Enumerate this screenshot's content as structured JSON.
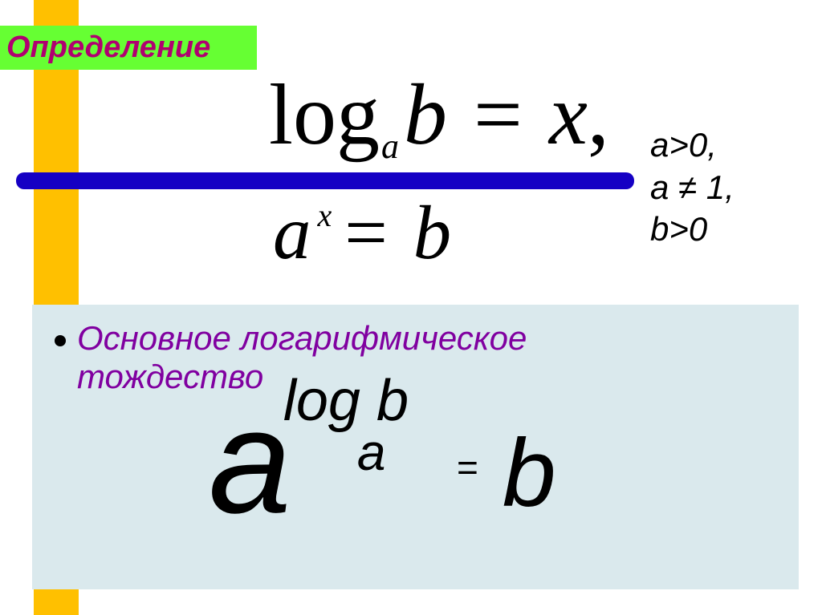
{
  "header": {
    "title": "Определение",
    "bg_color": "#66ff33",
    "text_color": "#b00070"
  },
  "decoration": {
    "orange_bar_color": "#ffc000",
    "blue_line_color": "#1500c4"
  },
  "equation1": {
    "func": "log",
    "base": "a",
    "arg": "b",
    "eq": "=",
    "rhs": "x",
    "trailing": ","
  },
  "equation2": {
    "base": "a",
    "exp": "x",
    "eq": "=",
    "rhs": "b"
  },
  "conditions": {
    "line1": "a>0,",
    "line2_a": "a ",
    "line2_neq": "≠",
    "line2_b": " 1,",
    "line3": "b>0"
  },
  "lower": {
    "panel_bg": "#dae9ed",
    "label": "Основное логарифмическое тождество",
    "label_color": "#8000a0",
    "identity": {
      "base": "a",
      "exp_func": "log",
      "exp_arg": "b",
      "exp_base": "a",
      "eq": "=",
      "rhs": "b"
    }
  }
}
